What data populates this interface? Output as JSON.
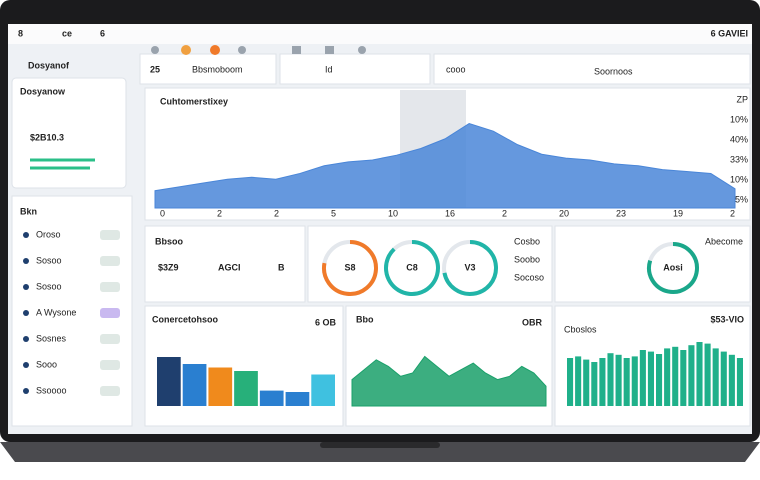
{
  "topbar": {
    "left": [
      "8",
      "ce",
      "6"
    ],
    "right": "6 GAVIEI"
  },
  "header": {
    "sidebar_title": "Dosyanof",
    "box1_num": "25",
    "box1_label": "Bbsmoboom",
    "box2_label": "Id",
    "box3_label": "cooo",
    "box3_right": "Soornoos"
  },
  "sidebar": {
    "card_label": "Dosyanow",
    "card_value": "$2B10.3",
    "section": "Bkn",
    "items": [
      "Oroso",
      "Sosoo",
      "Sosoo",
      "A Wysone",
      "Sosnes",
      "Sooo",
      "Ssoooo"
    ]
  },
  "main_chart": {
    "title": "Cuhtomerstixey",
    "ylim": [
      0,
      100
    ],
    "values": [
      18,
      22,
      26,
      30,
      32,
      30,
      36,
      44,
      48,
      50,
      55,
      62,
      72,
      88,
      80,
      66,
      56,
      52,
      50,
      46,
      44,
      40,
      38,
      36,
      20
    ],
    "side_labels": [
      "ZP",
      "10%",
      "40%",
      "33%",
      "10%",
      "5%"
    ],
    "x_labels": [
      "0",
      "2",
      "2",
      "5",
      "10",
      "16",
      "2",
      "20",
      "23",
      "19",
      "2"
    ],
    "color": "#4a86d8"
  },
  "kpi": {
    "title": "Bbsoo",
    "values": [
      "$3Z9",
      "AGCI",
      "B"
    ]
  },
  "gauges": {
    "items": [
      {
        "label": "S8",
        "value": 78,
        "color": "#f07a2a"
      },
      {
        "label": "C8",
        "value": 88,
        "color": "#21b5a8"
      },
      {
        "label": "V3",
        "value": 72,
        "color": "#21b5a8"
      }
    ],
    "right": [
      "Cosbo",
      "Soobo",
      "Socoso"
    ]
  },
  "ring_panel": {
    "value": 80,
    "color": "#1aa78a",
    "label": "Abecome",
    "center": "Aosi"
  },
  "bar_panel": {
    "title": "Conercetohsoo",
    "right": "6 OB",
    "ylim": [
      0,
      100
    ],
    "values": [
      70,
      60,
      55,
      50,
      22,
      20,
      45
    ],
    "colors": [
      "#1f3f6e",
      "#2a7fd0",
      "#f08a1c",
      "#27b07a",
      "#2a7fd0",
      "#2a7fd0",
      "#3fc1e0"
    ]
  },
  "area_panel": {
    "title": "Bbo",
    "right": "OBR",
    "ylim": [
      0,
      100
    ],
    "color": "#1aa06a",
    "values": [
      40,
      55,
      70,
      60,
      45,
      50,
      75,
      60,
      45,
      55,
      65,
      50,
      40,
      45,
      60,
      50,
      30
    ]
  },
  "teal_panel": {
    "title": "Cboslos",
    "right": "$53-VIO",
    "ylim": [
      0,
      100
    ],
    "color": "#1fb08a",
    "values": [
      60,
      62,
      58,
      55,
      60,
      66,
      64,
      60,
      62,
      70,
      68,
      65,
      72,
      74,
      70,
      76,
      80,
      78,
      72,
      68,
      64,
      60
    ]
  }
}
